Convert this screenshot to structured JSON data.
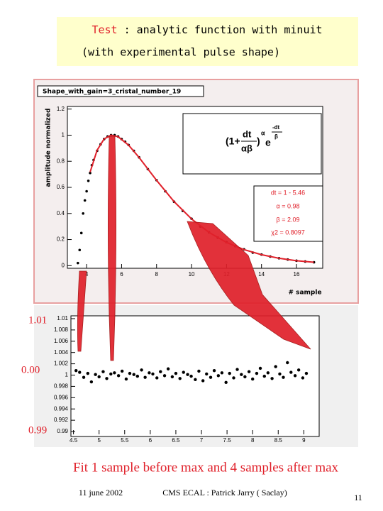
{
  "header": {
    "title_lead": "Test",
    "title_rest": ": analytic function with minuit",
    "subtitle": "(with experimental pulse shape)"
  },
  "chart_data": [
    {
      "type": "scatter",
      "title": "Shape_with_gain=3_cristal_number_19",
      "x_label": "# sample",
      "y_label": "amplitude  normalized",
      "xlim": [
        2.9,
        17.5
      ],
      "ylim": [
        -0.02,
        1.22
      ],
      "xticks": [
        4,
        6,
        8,
        10,
        12,
        14,
        16
      ],
      "yticks": [
        0,
        0.2,
        0.4,
        0.6,
        0.8,
        1,
        1.2
      ],
      "formula": [
        "(1+",
        "dt",
        "αβ",
        ")",
        "α",
        "e",
        "-dt",
        "β"
      ],
      "annotations": [
        "dt = 1 - 5.46",
        "α = 0.98",
        "β = 2.09",
        "χ2 = 0.8097"
      ],
      "series": [
        {
          "style": "markers",
          "color": "#000000",
          "x": [
            3.5,
            3.6,
            3.7,
            3.8,
            3.9,
            4.0,
            4.1,
            4.2,
            4.3,
            4.4,
            4.6,
            4.8,
            5.0,
            5.2,
            5.4,
            5.6,
            5.8,
            6.0,
            6.2,
            6.4,
            6.7,
            7.0,
            7.5,
            8,
            8.5,
            9,
            9.5,
            10,
            10.5,
            11,
            11.5,
            12,
            12.5,
            13,
            13.5,
            14,
            14.5,
            15,
            15.5,
            16,
            16.5,
            17
          ],
          "values": [
            0.02,
            0.12,
            0.25,
            0.4,
            0.5,
            0.57,
            0.65,
            0.71,
            0.77,
            0.81,
            0.88,
            0.93,
            0.97,
            0.99,
            1.0,
            1.0,
            0.99,
            0.97,
            0.95,
            0.925,
            0.88,
            0.83,
            0.74,
            0.655,
            0.57,
            0.49,
            0.42,
            0.36,
            0.3,
            0.255,
            0.215,
            0.18,
            0.15,
            0.125,
            0.1,
            0.085,
            0.07,
            0.057,
            0.047,
            0.038,
            0.032,
            0.026
          ]
        },
        {
          "style": "line",
          "color": "#e0202a",
          "x": [
            4.2,
            4.6,
            5.0,
            5.4,
            5.8,
            6.4,
            7,
            8,
            9,
            10,
            11,
            12,
            13,
            14,
            15,
            16,
            17
          ],
          "values": [
            0.717,
            0.885,
            0.971,
            1.0,
            0.988,
            0.924,
            0.829,
            0.654,
            0.491,
            0.358,
            0.255,
            0.178,
            0.123,
            0.084,
            0.057,
            0.038,
            0.026
          ]
        }
      ]
    },
    {
      "type": "scatter",
      "xlim": [
        4.45,
        9.3
      ],
      "ylim": [
        0.9895,
        1.0105
      ],
      "xticks": [
        4.5,
        5,
        5.5,
        6,
        6.5,
        7,
        7.5,
        8,
        8.5,
        9
      ],
      "yticks": [
        0.99,
        0.992,
        0.994,
        0.996,
        0.998,
        1,
        1.002,
        1.004,
        1.006,
        1.008,
        1.01
      ],
      "side_labels": [
        "1.01",
        "0.00",
        "0.99"
      ],
      "series": [
        {
          "style": "markers",
          "color": "#000000",
          "x": [
            4.55,
            4.62,
            4.7,
            4.78,
            4.85,
            4.93,
            5.0,
            5.08,
            5.15,
            5.23,
            5.3,
            5.38,
            5.45,
            5.53,
            5.6,
            5.68,
            5.75,
            5.83,
            5.9,
            5.98,
            6.05,
            6.13,
            6.2,
            6.28,
            6.35,
            6.43,
            6.5,
            6.58,
            6.65,
            6.73,
            6.8,
            6.88,
            6.95,
            7.03,
            7.1,
            7.18,
            7.25,
            7.33,
            7.4,
            7.48,
            7.55,
            7.63,
            7.7,
            7.78,
            7.85,
            7.93,
            8.0,
            8.08,
            8.15,
            8.23,
            8.3,
            8.38,
            8.45,
            8.53,
            8.6,
            8.68,
            8.75,
            8.83,
            8.9,
            8.98,
            9.05
          ],
          "values": [
            1.0008,
            1.0005,
            0.9996,
            1.0003,
            0.9988,
            1.0001,
            0.9997,
            1.0006,
            0.9994,
            1.0002,
            1.0004,
            0.9999,
            1.0007,
            0.9993,
            1.0003,
            1.0001,
            0.9998,
            1.0009,
            0.9996,
            1.0004,
            1.0002,
            0.9995,
            1.0006,
            0.9999,
            1.0011,
            0.9997,
            1.0003,
            0.9994,
            1.0005,
            1.0001,
            0.9998,
            0.9992,
            1.0007,
            0.999,
            1.0002,
            0.9996,
            1.0008,
            0.9999,
            1.0004,
            0.9987,
            1.0003,
            0.9995,
            1.001,
            1.0001,
            0.9997,
            1.0006,
            0.9993,
            1.0003,
            1.0012,
            0.9998,
            1.0004,
            0.9994,
            1.0015,
            1.0002,
            0.9996,
            1.0022,
            1.0005,
            0.9999,
            1.0009,
            0.9995,
            1.0003
          ]
        }
      ]
    }
  ],
  "caption": "Fit 1 sample before max and 4 samples after max",
  "footer": {
    "date": "11 june 2002",
    "author": "CMS ECAL : Patrick Jarry ( Saclay)",
    "page": "11"
  }
}
